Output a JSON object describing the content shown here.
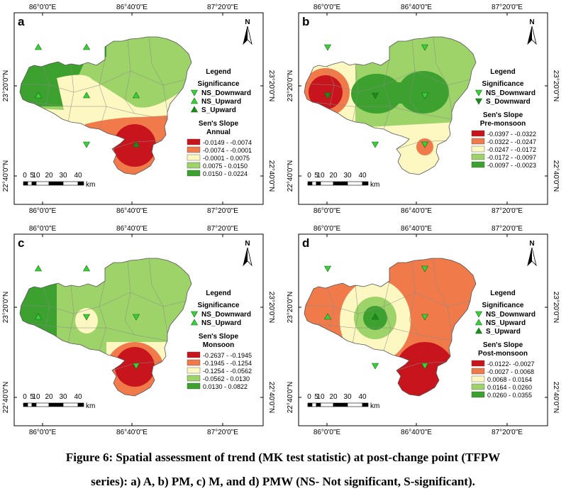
{
  "axis_labels": {
    "lon": [
      "86°0'0\"E",
      "86°40'0\"E",
      "87°20'0\"E"
    ],
    "lat": [
      "23°20'0\"N",
      "22°40'0\"N"
    ]
  },
  "legend": {
    "title": "Legend",
    "significance": "Significance",
    "sens_slope": "Sen's Slope",
    "items": {
      "ns_down": "NS_Downward",
      "ns_up": "NS_Upward",
      "s_up": "S_Upward",
      "s_down": "S_Downward"
    }
  },
  "scale": {
    "ticks": [
      "0",
      "5",
      "10",
      "20",
      "30",
      "40"
    ],
    "unit": "km"
  },
  "north": "N",
  "panels": [
    {
      "id": "a",
      "label": "a",
      "subtitle": "Annual",
      "classes": [
        "-0.0149 - -0.0074",
        "-0.0074 - -0.0001",
        "-0.0001 - 0.0075",
        "0.0075 - 0.0150",
        "0.0150 - 0.0224"
      ]
    },
    {
      "id": "b",
      "label": "b",
      "subtitle": "Pre-monsoon",
      "classes": [
        "-0.0397 - -0.0322",
        "-0.0322 - -0.0247",
        "-0.0247 - -0.0172",
        "-0.0172 - -0.0097",
        "-0.0097 - -0.0023"
      ]
    },
    {
      "id": "c",
      "label": "c",
      "subtitle": "Monsoon",
      "classes": [
        "-0.2637 - -0.1945",
        "-0.1945 - -0.1254",
        "-0.1254 - -0.0562",
        "-0.0562 - 0.0130",
        "0.0130 - 0.0822"
      ]
    },
    {
      "id": "d",
      "label": "d",
      "subtitle": "Post-monsoon",
      "classes": [
        "-0.0122- -0.0027",
        "-0.0027 - 0.0068",
        "0.0068 - 0.0164",
        "0.0164 - 0.0260",
        "0.0260 - 0.0355"
      ]
    }
  ],
  "class_colors": [
    "#c8141c",
    "#f07a4a",
    "#fdf7c2",
    "#9ed36a",
    "#3ca12f"
  ],
  "caption": {
    "line1": "Figure 6: Spatial assessment of trend (MK test statistic) at post-change point (TFPW",
    "line2": "series): a) A, b) PM, c) M, and d) PMW (NS- Not significant, S-significant)."
  }
}
